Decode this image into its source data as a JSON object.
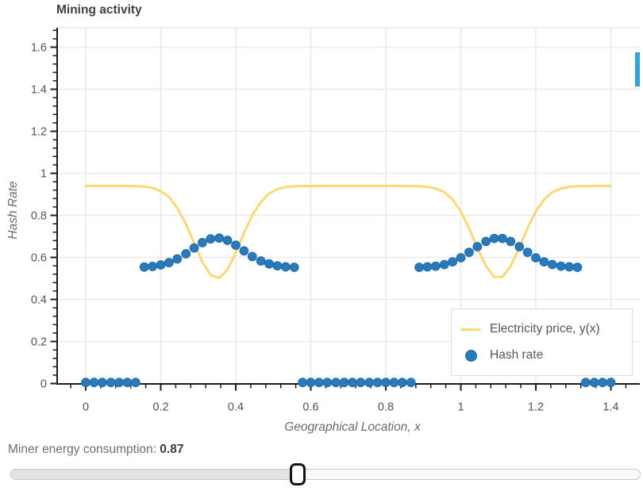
{
  "figure": {
    "title": "Mining activity",
    "legend": [
      {
        "label": "Electricity price, y(x)",
        "type": "line",
        "color": "#f8d973"
      },
      {
        "label": "Hash rate",
        "type": "dot",
        "color": "#2a7ab9"
      }
    ]
  },
  "controls": {
    "slider_label": "Miner energy consumption:",
    "slider_value": "0.87"
  },
  "colors": {
    "electricity": "#f8d973",
    "hash_dot_fill": "#2a7ab9",
    "hash_dot_stroke": "#1f6bab",
    "grid": "#e9e9e9",
    "axis": "#1c1c1c",
    "tick_label": "#545454",
    "axis_title": "#6a6a6a",
    "scrollbar": "#2ea4da"
  },
  "chart_data": {
    "type": "line+scatter",
    "title": "Mining activity",
    "xlabel": "Geographical Location, x",
    "ylabel": "Hash Rate",
    "xlim": [
      -0.075,
      1.48
    ],
    "ylim": [
      0,
      1.69
    ],
    "x_ticks": [
      0,
      0.2,
      0.4,
      0.6,
      0.8,
      1,
      1.2,
      1.4
    ],
    "y_ticks": [
      0,
      0.2,
      0.4,
      0.6,
      0.8,
      1,
      1.2,
      1.4,
      1.6
    ],
    "minor_tick_step": 0.04,
    "grid": true,
    "legend_position": "bottom-right",
    "x": [
      0,
      0.022,
      0.044,
      0.067,
      0.089,
      0.111,
      0.133,
      0.156,
      0.178,
      0.2,
      0.222,
      0.244,
      0.267,
      0.289,
      0.311,
      0.333,
      0.356,
      0.378,
      0.4,
      0.422,
      0.444,
      0.467,
      0.489,
      0.511,
      0.533,
      0.556,
      0.578,
      0.6,
      0.622,
      0.644,
      0.667,
      0.689,
      0.711,
      0.733,
      0.756,
      0.778,
      0.8,
      0.822,
      0.844,
      0.867,
      0.889,
      0.911,
      0.933,
      0.956,
      0.978,
      1,
      1.022,
      1.044,
      1.067,
      1.089,
      1.111,
      1.133,
      1.156,
      1.178,
      1.2,
      1.222,
      1.244,
      1.267,
      1.289,
      1.311,
      1.333,
      1.356,
      1.378,
      1.4
    ],
    "series": [
      {
        "name": "Electricity price, y(x)",
        "type": "line",
        "color": "#f8d973",
        "values": [
          0.94,
          0.94,
          0.94,
          0.94,
          0.94,
          0.94,
          0.939,
          0.937,
          0.93,
          0.916,
          0.887,
          0.836,
          0.76,
          0.668,
          0.578,
          0.516,
          0.502,
          0.542,
          0.621,
          0.716,
          0.801,
          0.864,
          0.904,
          0.925,
          0.934,
          0.938,
          0.939,
          0.94,
          0.94,
          0.94,
          0.94,
          0.94,
          0.94,
          0.94,
          0.94,
          0.94,
          0.94,
          0.94,
          0.94,
          0.939,
          0.939,
          0.936,
          0.928,
          0.91,
          0.876,
          0.819,
          0.739,
          0.645,
          0.559,
          0.507,
          0.507,
          0.559,
          0.645,
          0.739,
          0.819,
          0.876,
          0.91,
          0.928,
          0.936,
          0.939,
          0.939,
          0.94,
          0.94,
          0.94
        ]
      },
      {
        "name": "Hash rate",
        "type": "scatter",
        "color": "#2a7ab9",
        "values": [
          0.005,
          0.005,
          0.005,
          0.005,
          0.005,
          0.005,
          0.005,
          0.554,
          0.557,
          0.564,
          0.575,
          0.593,
          0.617,
          0.645,
          0.67,
          0.688,
          0.692,
          0.681,
          0.658,
          0.631,
          0.604,
          0.583,
          0.569,
          0.56,
          0.555,
          0.553,
          0.005,
          0.005,
          0.005,
          0.005,
          0.005,
          0.005,
          0.005,
          0.005,
          0.005,
          0.005,
          0.005,
          0.005,
          0.005,
          0.005,
          0.553,
          0.555,
          0.558,
          0.566,
          0.579,
          0.598,
          0.624,
          0.651,
          0.676,
          0.69,
          0.69,
          0.676,
          0.651,
          0.624,
          0.598,
          0.579,
          0.566,
          0.558,
          0.555,
          0.553,
          0.005,
          0.005,
          0.005,
          0.005
        ]
      }
    ]
  }
}
